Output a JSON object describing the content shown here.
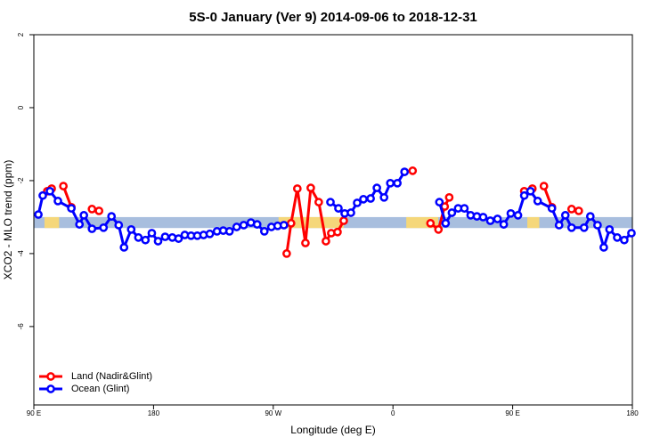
{
  "chart_data": {
    "type": "line",
    "title": "5S-0 January (Ver 9)   2014-09-06 to 2018-12-31",
    "xlabel": "Longitude (deg E)",
    "ylabel": "XCO2 - MLO trend (ppm)",
    "xlim": [
      90,
      540
    ],
    "xticks": [
      {
        "value": 90,
        "label": "90 E"
      },
      {
        "value": 180,
        "label": "180"
      },
      {
        "value": 270,
        "label": "90 W"
      },
      {
        "value": 360,
        "label": "0"
      },
      {
        "value": 450,
        "label": "90 E"
      },
      {
        "value": 540,
        "label": "180"
      }
    ],
    "ylim": [
      -8.15,
      2
    ],
    "yticks": [
      2,
      0,
      -2,
      -4,
      -6
    ],
    "band": [
      -3.3,
      -3.0
    ],
    "band_color": "#a8bede",
    "land_spans": [
      [
        98,
        109
      ],
      [
        274,
        323
      ],
      [
        370,
        394
      ],
      [
        461,
        470
      ]
    ],
    "land_color": "#f5d77a",
    "legend": "bottomleft",
    "series": [
      {
        "name": "Land (Nadir&Glint)",
        "color": "#ff0000",
        "x": [
          100.1,
          103.4,
          105,
          112.2,
          118.2,
          120,
          133.7,
          139.0,
          200,
          280.1,
          283.4,
          288.1,
          294.2,
          298.2,
          304.2,
          309.6,
          313.6,
          318.3,
          323.0,
          340,
          374.8,
          380,
          388.2,
          394.2,
          398.9,
          402.3,
          420,
          458.7,
          464.8,
          468,
          473.5,
          479.5,
          490,
          494.3,
          499.7
        ],
        "values": [
          -2.29,
          -2.22,
          null,
          -2.15,
          -2.73,
          null,
          -2.78,
          -2.83,
          null,
          -4.0,
          -3.17,
          -2.22,
          -3.71,
          -2.2,
          -2.59,
          -3.66,
          -3.44,
          -3.41,
          -3.1,
          null,
          -1.73,
          null,
          -3.17,
          -3.34,
          -2.71,
          -2.46,
          null,
          -2.29,
          -2.22,
          null,
          -2.15,
          -2.73,
          null,
          -2.78,
          -2.83
        ]
      },
      {
        "name": "Ocean (Glint)",
        "color": "#0000ff",
        "x": [
          93.4,
          96.7,
          102.1,
          108.1,
          118.2,
          124.3,
          127.6,
          133.7,
          142.4,
          148.4,
          153.8,
          157.8,
          163.2,
          168.6,
          173.9,
          178.7,
          183.4,
          188.7,
          194.1,
          198.8,
          203.5,
          208.2,
          212.9,
          217.6,
          222.3,
          227.7,
          232.4,
          237.1,
          242.5,
          247.8,
          253.2,
          257.9,
          263.3,
          268.6,
          273.3,
          278.0,
          300,
          313.0,
          319.0,
          323.7,
          328.4,
          333.1,
          337.8,
          343.2,
          347.9,
          353.3,
          358.0,
          363.3,
          368.7,
          380,
          394.9,
          399.6,
          404.3,
          409.0,
          413.7,
          418.4,
          423.1,
          427.8,
          433.2,
          438.6,
          443.3,
          448.6,
          454.0,
          458.7,
          463.4,
          468.8,
          479.5,
          484.9,
          489.6,
          494.3,
          503.7,
          508.4,
          513.8,
          518.5,
          522.8,
          528.6,
          533.9,
          539.3
        ],
        "values": [
          -2.93,
          -2.41,
          -2.29,
          -2.56,
          -2.76,
          -3.2,
          -2.95,
          -3.32,
          -3.29,
          -2.98,
          -3.22,
          -3.83,
          -3.34,
          -3.56,
          -3.63,
          -3.44,
          -3.66,
          -3.54,
          -3.56,
          -3.59,
          -3.49,
          -3.51,
          -3.51,
          -3.49,
          -3.46,
          -3.39,
          -3.37,
          -3.39,
          -3.27,
          -3.22,
          -3.15,
          -3.2,
          -3.39,
          -3.27,
          -3.24,
          -3.22,
          null,
          -2.59,
          -2.76,
          -2.9,
          -2.88,
          -2.61,
          -2.51,
          -2.49,
          -2.2,
          -2.46,
          -2.07,
          -2.07,
          -1.76,
          null,
          -2.59,
          -3.17,
          -2.88,
          -2.76,
          -2.76,
          -2.95,
          -2.98,
          -3.0,
          -3.1,
          -3.05,
          -3.2,
          -2.9,
          -2.95,
          -2.41,
          -2.29,
          -2.56,
          -2.76,
          -3.22,
          -2.95,
          -3.29,
          -3.29,
          -2.98,
          -3.22,
          -3.83,
          -3.34,
          -3.56,
          -3.63,
          -3.44
        ]
      }
    ]
  }
}
